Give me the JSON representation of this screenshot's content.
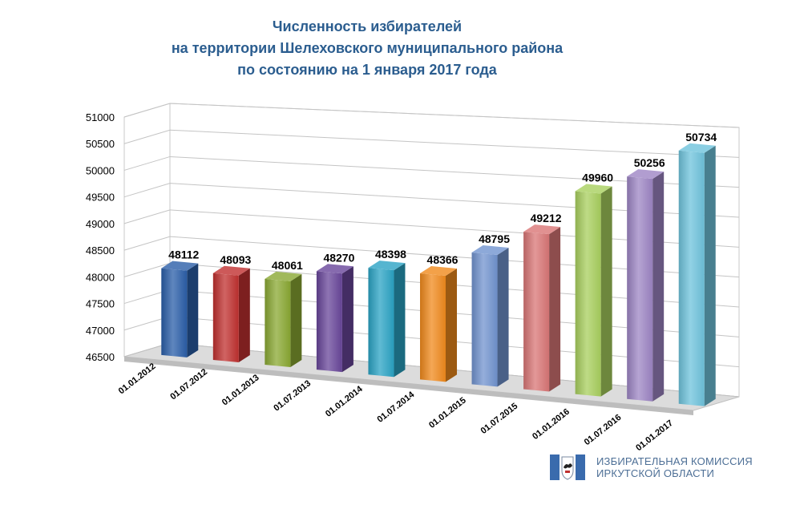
{
  "chart_data": {
    "type": "bar",
    "title_lines": [
      "Численность избирателей",
      "на территории Шелеховского муниципального района",
      "по состоянию на 1 января 2017 года"
    ],
    "categories": [
      "01.01.2012",
      "01.07.2012",
      "01.01.2013",
      "01.07.2013",
      "01.01.2014",
      "01.07.2014",
      "01.01.2015",
      "01.07.2015",
      "01.01.2016",
      "01.07.2016",
      "01.01.2017"
    ],
    "values": [
      48112,
      48093,
      48061,
      48270,
      48398,
      48366,
      48795,
      49212,
      49960,
      50256,
      50734
    ],
    "y_ticks": [
      "46500",
      "47000",
      "47500",
      "48000",
      "48500",
      "49000",
      "49500",
      "50000",
      "50500",
      "51000"
    ],
    "ylim": [
      46500,
      51000
    ],
    "grid": true,
    "legend": "none",
    "bar_colors": [
      "#2a5ea8",
      "#c0302f",
      "#8aa832",
      "#68459a",
      "#2aa3c4",
      "#f08a1c",
      "#7193cf",
      "#d97676",
      "#a8cf5e",
      "#9d85c4",
      "#6ec3dc"
    ]
  },
  "logo": {
    "line1": "ИЗБИРАТЕЛЬНАЯ КОМИССИЯ",
    "line2": "ИРКУТСКОЙ ОБЛАСТИ",
    "accent": "#3a6bad",
    "icon": "coat-of-arms-icon"
  }
}
